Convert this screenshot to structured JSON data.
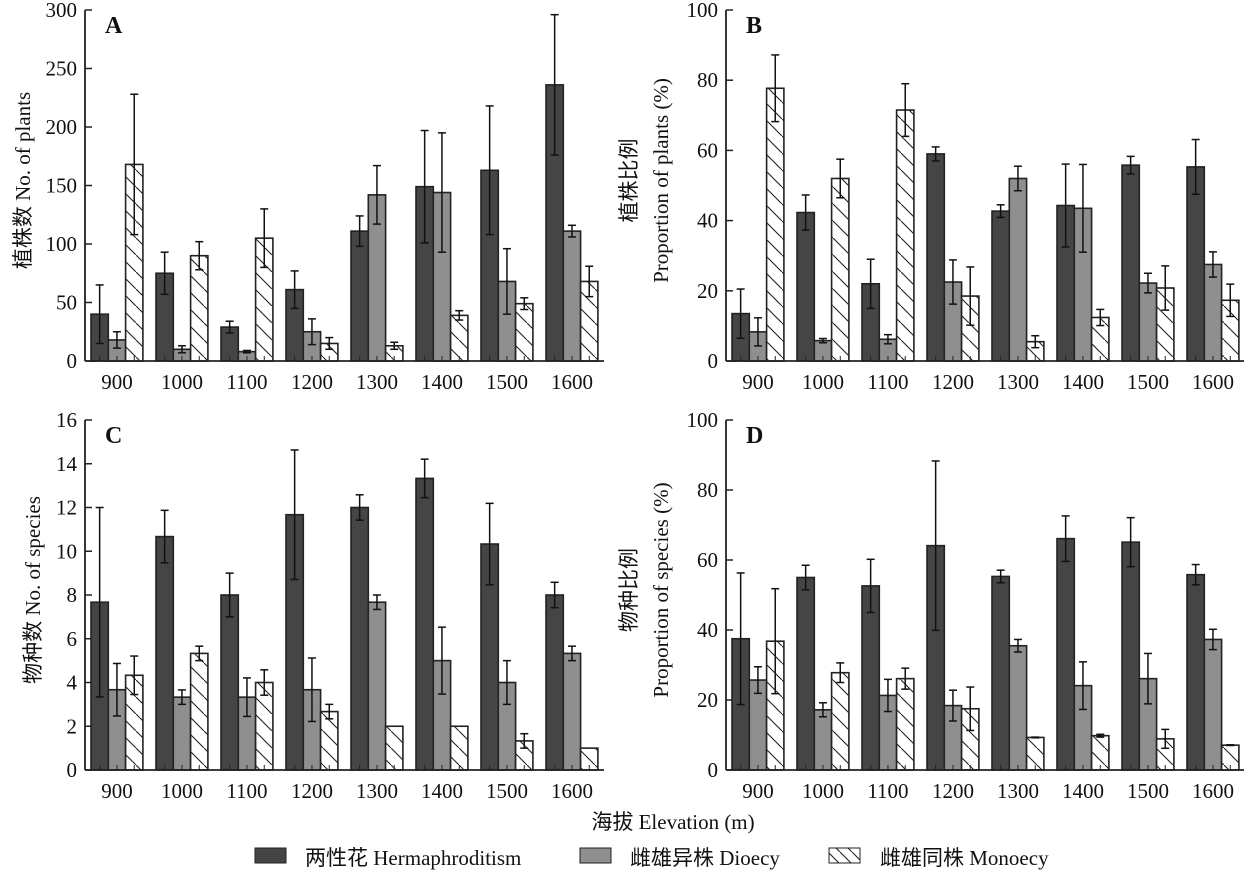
{
  "figure": {
    "x_axis_title": "海拔 Elevation (m)",
    "legend": [
      {
        "key": "H",
        "label": "两性花 Hermaphroditism",
        "fill": "#454545",
        "pattern": "solid"
      },
      {
        "key": "D",
        "label": "雌雄异株 Dioecy",
        "fill": "#8f8f8f",
        "pattern": "solid"
      },
      {
        "key": "M",
        "label": "雌雄同株 Monoecy",
        "fill": "#ffffff",
        "pattern": "hatch"
      }
    ],
    "legend_placement": "bottom-center"
  },
  "chart_data": [
    {
      "panel": "A",
      "type": "bar",
      "title": "",
      "xlabel": "",
      "ylabel": "植株数 No. of plants",
      "ylabel_lines": [
        "植株数 No. of plants"
      ],
      "categories": [
        "900",
        "1000",
        "1100",
        "1200",
        "1300",
        "1400",
        "1500",
        "1600"
      ],
      "ylim": [
        0,
        300
      ],
      "yticks": [
        0,
        50,
        100,
        150,
        200,
        250,
        300
      ],
      "grid": false,
      "series": [
        {
          "name": "两性花 Hermaphroditism",
          "values": [
            40,
            75,
            29,
            61,
            111,
            149,
            163,
            236
          ],
          "errors": [
            25,
            18,
            5,
            16,
            13,
            48,
            55,
            60
          ]
        },
        {
          "name": "雌雄异株 Dioecy",
          "values": [
            18,
            10,
            8,
            25,
            142,
            144,
            68,
            111
          ],
          "errors": [
            7,
            3,
            1,
            11,
            25,
            51,
            28,
            5
          ]
        },
        {
          "name": "雌雄同株 Monoecy",
          "values": [
            168,
            90,
            105,
            15,
            13,
            39,
            49,
            68
          ],
          "errors": [
            60,
            12,
            25,
            5,
            3,
            4,
            5,
            13
          ]
        }
      ]
    },
    {
      "panel": "B",
      "type": "bar",
      "title": "",
      "xlabel": "",
      "ylabel": "植株比例 Proportion of plants (%)",
      "ylabel_lines": [
        "植株比例",
        "Proportion of plants (%)"
      ],
      "categories": [
        "900",
        "1000",
        "1100",
        "1200",
        "1300",
        "1400",
        "1500",
        "1600"
      ],
      "ylim": [
        0,
        100
      ],
      "yticks": [
        0,
        20,
        40,
        60,
        80,
        100
      ],
      "grid": false,
      "series": [
        {
          "name": "两性花 Hermaphroditism",
          "values": [
            13.5,
            42.3,
            22.0,
            59.0,
            42.7,
            44.3,
            55.8,
            55.3
          ],
          "errors": [
            7.0,
            5.0,
            7.0,
            2.0,
            1.8,
            11.8,
            2.5,
            7.8
          ]
        },
        {
          "name": "雌雄异株 Dioecy",
          "values": [
            8.3,
            5.8,
            6.2,
            22.5,
            52.0,
            43.5,
            22.2,
            27.5
          ],
          "errors": [
            4.0,
            0.6,
            1.3,
            6.3,
            3.5,
            12.5,
            2.8,
            3.6
          ]
        },
        {
          "name": "雌雄同株 Monoecy",
          "values": [
            77.7,
            52.0,
            71.5,
            18.5,
            5.5,
            12.4,
            20.8,
            17.3
          ],
          "errors": [
            9.5,
            5.5,
            7.5,
            8.3,
            1.7,
            2.3,
            6.3,
            4.6
          ]
        }
      ]
    },
    {
      "panel": "C",
      "type": "bar",
      "title": "",
      "xlabel": "",
      "ylabel": "物种数 No. of species",
      "ylabel_lines": [
        "物种数 No. of species"
      ],
      "categories": [
        "900",
        "1000",
        "1100",
        "1200",
        "1300",
        "1400",
        "1500",
        "1600"
      ],
      "ylim": [
        0,
        16
      ],
      "yticks": [
        0,
        2,
        4,
        6,
        8,
        10,
        12,
        14,
        16
      ],
      "grid": false,
      "series": [
        {
          "name": "两性花 Hermaphroditism",
          "values": [
            7.67,
            10.67,
            8.0,
            11.67,
            12.0,
            13.33,
            10.33,
            8.0
          ],
          "errors": [
            4.33,
            1.2,
            1.0,
            2.96,
            0.58,
            0.88,
            1.86,
            0.58
          ]
        },
        {
          "name": "雌雄异株 Dioecy",
          "values": [
            3.67,
            3.33,
            3.33,
            3.67,
            7.67,
            5.0,
            4.0,
            5.33
          ],
          "errors": [
            1.2,
            0.33,
            0.88,
            1.45,
            0.33,
            1.53,
            1.0,
            0.33
          ]
        },
        {
          "name": "雌雄同株 Monoecy",
          "values": [
            4.33,
            5.33,
            4.0,
            2.67,
            2.0,
            2.0,
            1.33,
            1.0
          ],
          "errors": [
            0.88,
            0.33,
            0.58,
            0.33,
            0,
            0,
            0.33,
            0
          ]
        }
      ]
    },
    {
      "panel": "D",
      "type": "bar",
      "title": "",
      "xlabel": "",
      "ylabel": "物种比例 Proportion of species (%)",
      "ylabel_lines": [
        "物种比例",
        "Proportion of species (%)"
      ],
      "categories": [
        "900",
        "1000",
        "1100",
        "1200",
        "1300",
        "1400",
        "1500",
        "1600"
      ],
      "ylim": [
        0,
        100
      ],
      "yticks": [
        0,
        20,
        40,
        60,
        80,
        100
      ],
      "grid": false,
      "series": [
        {
          "name": "两性花 Hermaphroditism",
          "values": [
            37.5,
            55.0,
            52.6,
            64.1,
            55.3,
            66.1,
            65.1,
            55.8
          ],
          "errors": [
            18.8,
            3.5,
            7.6,
            24.2,
            1.8,
            6.5,
            7.0,
            2.9
          ]
        },
        {
          "name": "雌雄异株 Dioecy",
          "values": [
            25.7,
            17.2,
            21.3,
            18.4,
            35.5,
            24.1,
            26.1,
            37.3
          ],
          "errors": [
            3.8,
            2.0,
            4.6,
            4.4,
            1.8,
            6.8,
            7.2,
            2.9
          ]
        },
        {
          "name": "雌雄同株 Monoecy",
          "values": [
            36.8,
            27.8,
            26.1,
            17.5,
            9.3,
            9.8,
            8.9,
            7.1
          ],
          "errors": [
            15.0,
            2.8,
            3.0,
            6.2,
            0.1,
            0.4,
            2.7,
            0.1
          ]
        }
      ]
    }
  ]
}
